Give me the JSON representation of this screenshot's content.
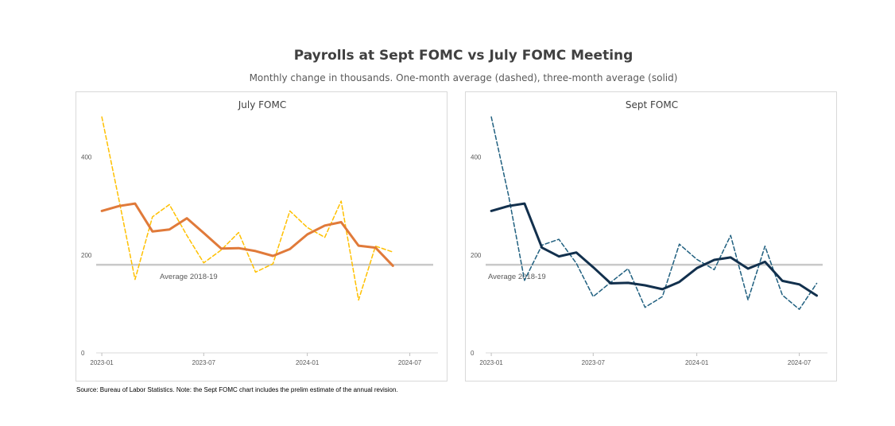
{
  "header": {
    "title": "Payrolls at Sept FOMC vs July FOMC Meeting",
    "subtitle": "Monthly change in thousands. One-month average (dashed), three-month average (solid)"
  },
  "footer": {
    "source": "Source: Bureau of Labor Statistics. Note: the Sept FOMC chart includes the prelim estimate of the annual revision."
  },
  "chart_data": [
    {
      "type": "line",
      "title": "July FOMC",
      "x": [
        "2023-01-01",
        "2023-02-01",
        "2023-03-01",
        "2023-04-01",
        "2023-05-01",
        "2023-06-01",
        "2023-07-01",
        "2023-08-01",
        "2023-09-01",
        "2023-10-01",
        "2023-11-01",
        "2023-12-01",
        "2024-01-01",
        "2024-02-01",
        "2024-03-01",
        "2024-04-01",
        "2024-05-01",
        "2024-06-01"
      ],
      "x_ticks": [
        "2023-01",
        "2023-07",
        "2024-01",
        "2024-07"
      ],
      "y_ticks": [
        "0",
        "200",
        "400"
      ],
      "ylim": [
        0,
        500
      ],
      "xlim": [
        "2022-12-22",
        "2024-08-20"
      ],
      "grid": false,
      "series": [
        {
          "style": "dashed",
          "color": "#FFC000",
          "values": [
            482,
            310,
            150,
            278,
            303,
            240,
            184,
            210,
            246,
            165,
            182,
            290,
            256,
            236,
            310,
            108,
            218,
            206
          ]
        },
        {
          "style": "solid",
          "color": "#E07A3A",
          "values": [
            290,
            300,
            305,
            248,
            252,
            275,
            245,
            213,
            214,
            208,
            198,
            212,
            242,
            260,
            267,
            219,
            215,
            178
          ]
        }
      ],
      "reference_lines": [
        {
          "y": 180,
          "label": "Average 2018-19",
          "color": "#C9C9C9"
        }
      ]
    },
    {
      "type": "line",
      "title": "Sept FOMC",
      "x": [
        "2023-01-01",
        "2023-02-01",
        "2023-03-01",
        "2023-04-01",
        "2023-05-01",
        "2023-06-01",
        "2023-07-01",
        "2023-08-01",
        "2023-09-01",
        "2023-10-01",
        "2023-11-01",
        "2023-12-01",
        "2024-01-01",
        "2024-02-01",
        "2024-03-01",
        "2024-04-01",
        "2024-05-01",
        "2024-06-01",
        "2024-07-01",
        "2024-08-01"
      ],
      "x_ticks": [
        "2023-01",
        "2023-07",
        "2024-01",
        "2024-07"
      ],
      "y_ticks": [
        "0",
        "200",
        "400"
      ],
      "ylim": [
        0,
        500
      ],
      "xlim": [
        "2022-12-22",
        "2024-08-20"
      ],
      "grid": false,
      "series": [
        {
          "style": "dashed",
          "color": "#1F5F7F",
          "values": [
            482,
            320,
            148,
            220,
            232,
            183,
            115,
            144,
            172,
            93,
            115,
            222,
            191,
            170,
            240,
            108,
            218,
            118,
            89,
            142
          ]
        },
        {
          "style": "solid",
          "color": "#12304D",
          "values": [
            290,
            300,
            305,
            215,
            197,
            205,
            175,
            142,
            143,
            138,
            130,
            145,
            173,
            190,
            195,
            172,
            186,
            147,
            140,
            117
          ]
        }
      ],
      "reference_lines": [
        {
          "y": 180,
          "label": "Average 2018-19",
          "color": "#C9C9C9"
        }
      ]
    }
  ]
}
